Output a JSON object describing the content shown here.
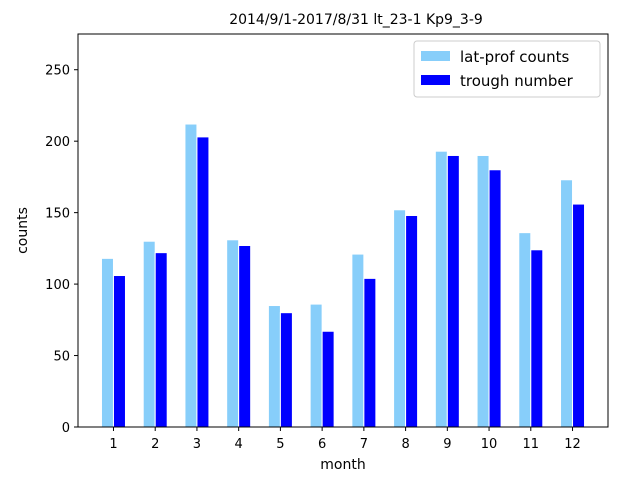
{
  "chart_data": {
    "type": "bar",
    "title": "2014/9/1-2017/8/31  lt_23-1  Kp9_3-9",
    "xlabel": "month",
    "ylabel": "counts",
    "categories": [
      "1",
      "2",
      "3",
      "4",
      "5",
      "6",
      "7",
      "8",
      "9",
      "10",
      "11",
      "12"
    ],
    "ylim": [
      0,
      275
    ],
    "yticks": [
      0,
      50,
      100,
      150,
      200,
      250
    ],
    "legend_position": "top-right",
    "grid": false,
    "series": [
      {
        "name": "lat-prof counts",
        "color": "#87cefa",
        "values": [
          118,
          130,
          212,
          131,
          85,
          86,
          121,
          152,
          193,
          190,
          136,
          173
        ]
      },
      {
        "name": "trough number",
        "color": "#0000ff",
        "values": [
          106,
          122,
          203,
          127,
          80,
          67,
          104,
          148,
          190,
          180,
          124,
          156
        ]
      }
    ]
  }
}
